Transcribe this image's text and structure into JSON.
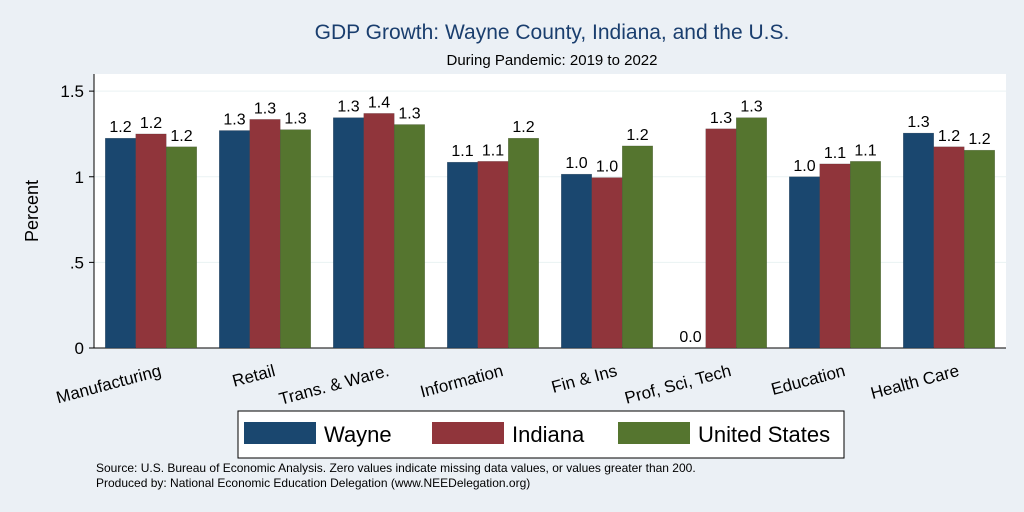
{
  "chart_data": {
    "type": "bar",
    "title": "GDP Growth: Wayne County, Indiana, and the U.S.",
    "subtitle": "During Pandemic: 2019 to 2022",
    "ylabel": "Percent",
    "xlabel": "",
    "ylim": [
      0,
      1.6
    ],
    "yticks": [
      {
        "value": 0,
        "label": "0"
      },
      {
        "value": 0.5,
        "label": ".5"
      },
      {
        "value": 1,
        "label": "1"
      },
      {
        "value": 1.5,
        "label": "1.5"
      }
    ],
    "grid": true,
    "legend_position": "bottom",
    "categories": [
      "Manufacturing",
      "Retail",
      "Trans. & Ware.",
      "Information",
      "Fin & Ins",
      "Prof, Sci, Tech",
      "Education",
      "Health Care"
    ],
    "series": [
      {
        "name": "Wayne",
        "color": "#1a476f",
        "values": [
          1.225,
          1.27,
          1.345,
          1.085,
          1.015,
          0,
          1.0,
          1.255
        ],
        "labels": [
          "1.2",
          "1.3",
          "1.3",
          "1.1",
          "1.0",
          "0.0",
          "1.0",
          "1.3"
        ]
      },
      {
        "name": "Indiana",
        "color": "#90353b",
        "values": [
          1.25,
          1.335,
          1.37,
          1.09,
          0.995,
          1.28,
          1.075,
          1.175
        ],
        "labels": [
          "1.2",
          "1.3",
          "1.4",
          "1.1",
          "1.0",
          "1.3",
          "1.1",
          "1.2"
        ]
      },
      {
        "name": "United States",
        "color": "#55752f",
        "values": [
          1.175,
          1.275,
          1.305,
          1.225,
          1.18,
          1.345,
          1.09,
          1.155
        ],
        "labels": [
          "1.2",
          "1.3",
          "1.3",
          "1.2",
          "1.2",
          "1.3",
          "1.1",
          "1.2"
        ]
      }
    ]
  },
  "footer": {
    "source": "Source: U.S. Bureau of Economic Analysis. Zero values indicate missing data values, or values greater than 200.",
    "produced": "Produced by: National Economic Education Delegation (www.NEEDelegation.org)"
  }
}
